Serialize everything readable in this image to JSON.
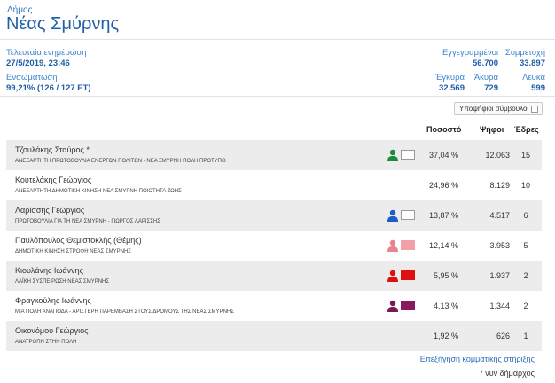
{
  "header": {
    "kicker": "Δήμος",
    "title": "Νέας Σμύρνης"
  },
  "stats": {
    "last_update_label": "Τελευταία ενημέρωση",
    "last_update_value": "27/5/2019, 23:46",
    "integration_label": "Ενσωμάτωση",
    "integration_value": "99,21% (126 / 127 ΕΤ)",
    "registered_label": "Εγγεγραμμένοι",
    "registered_value": "56.700",
    "turnout_label": "Συμμετοχή",
    "turnout_value": "33.897",
    "valid_label": "Έγκυρα",
    "valid_value": "32.569",
    "invalid_label": "Άκυρα",
    "invalid_value": "729",
    "blank_label": "Λευκά",
    "blank_value": "599"
  },
  "controls": {
    "candidates_toggle_label": "Υποψήφιοι σύμβουλοι"
  },
  "table": {
    "headers": {
      "percent": "Ποσοστό",
      "votes": "Ψήφοι",
      "seats": "Έδρες"
    },
    "rows": [
      {
        "name": "Τζουλάκης Σταύρος *",
        "party": "ΑΝΕΞΑΡΤΗΤΗ ΠΡΩΤΟΒΟΥΛΙΑ ΕΝΕΡΓΩΝ ΠΟΛΙΤΩΝ - ΝΕΑ ΣΜΥΡΝΗ ΠΟΛΗ ΠΡΟΤΥΠΟ",
        "percent": "37,04 %",
        "votes": "12.063",
        "seats": "15",
        "person_color": "#1e8a3c",
        "swatch_color": "#ffffff"
      },
      {
        "name": "Κουτελάκης Γεώργιος",
        "party": "ΑΝΕΞΑΡΤΗΤΗ ΔΗΜΟΤΙΚΗ ΚΙΝΗΣΗ ΝΕΑ ΣΜΥΡΝΗ ΠΟΙΟΤΗΤΑ ΖΩΗΣ",
        "percent": "24,96 %",
        "votes": "8.129",
        "seats": "10",
        "person_color": "",
        "swatch_color": ""
      },
      {
        "name": "Λαρίσσης Γεώργιος",
        "party": "ΠΡΩΤΟΒΟΥΛΙΑ ΓΙΑ ΤΗ ΝΕΑ ΣΜΥΡΝΗ - ΓΙΩΡΓΟΣ ΛΑΡΙΣΣΗΣ",
        "percent": "13,87 %",
        "votes": "4.517",
        "seats": "6",
        "person_color": "#1a5dc8",
        "swatch_color": "#ffffff"
      },
      {
        "name": "Παυλόπουλος Θεμιστοκλής (Θέμης)",
        "party": "ΔΗΜΟΤΙΚΗ ΚΙΝΗΣΗ ΣΤΡΟΦΗ ΝΕΑΣ ΣΜΥΡΝΗΣ",
        "percent": "12,14 %",
        "votes": "3.953",
        "seats": "5",
        "person_color": "#e8848f",
        "swatch_color": "#f2a0a8"
      },
      {
        "name": "Κιουλάνης Ιωάννης",
        "party": "ΛΑΪΚΗ ΣΥΣΠΕΙΡΩΣΗ ΝΕΑΣ ΣΜΥΡΝΗΣ",
        "percent": "5,95 %",
        "votes": "1.937",
        "seats": "2",
        "person_color": "#e01010",
        "swatch_color": "#e01010"
      },
      {
        "name": "Φραγκούλης Ιωάννης",
        "party": "ΜΙΑ ΠΟΛΗ ΑΝΑΠΟΔΑ - ΑΡΙΣΤΕΡΗ ΠΑΡΕΜΒΑΣΗ ΣΤΟΥΣ ΔΡΟΜΟΥΣ ΤΗΣ ΝΕΑΣ ΣΜΥΡΝΗΣ",
        "percent": "4,13 %",
        "votes": "1.344",
        "seats": "2",
        "person_color": "#7a1a55",
        "swatch_color": "#8a1a5e"
      },
      {
        "name": "Οικονόμου Γεώργιος",
        "party": "ΑΝΑΤΡΟΠΗ ΣΤΗΝ ΠΟΛΗ",
        "percent": "1,92 %",
        "votes": "626",
        "seats": "1",
        "person_color": "",
        "swatch_color": ""
      }
    ]
  },
  "footer": {
    "explain_link": "Επεξήγηση κομματικής στήριξης",
    "footnote": "* νυν δήμαρχος"
  }
}
